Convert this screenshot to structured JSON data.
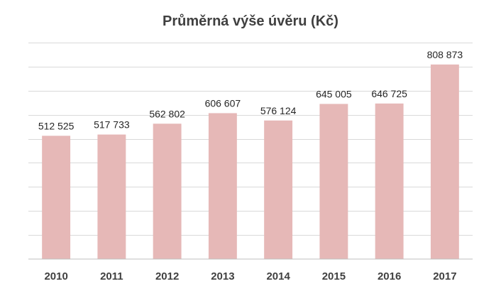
{
  "chart_data": {
    "type": "bar",
    "title": "Průměrná výše úvěru (Kč)",
    "categories": [
      "2010",
      "2011",
      "2012",
      "2013",
      "2014",
      "2015",
      "2016",
      "2017"
    ],
    "values": [
      512525,
      517733,
      562802,
      606607,
      576124,
      645005,
      646725,
      808873
    ],
    "data_labels": [
      "512 525",
      "517 733",
      "562 802",
      "606 607",
      "576 124",
      "645 005",
      "646 725",
      "808 873"
    ],
    "ylim": [
      0,
      900000
    ],
    "grid": true,
    "legend": "none",
    "colors": {
      "bar": "#e6b8b7"
    }
  }
}
